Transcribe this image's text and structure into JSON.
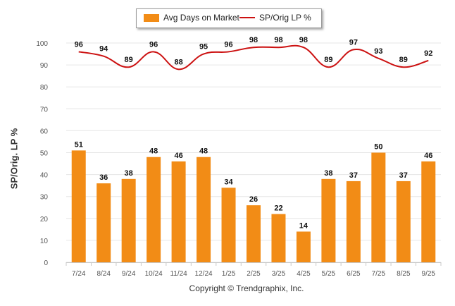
{
  "chart_data": {
    "type": "bar+line",
    "title": "",
    "categories": [
      "7/24",
      "8/24",
      "9/24",
      "10/24",
      "11/24",
      "12/24",
      "1/25",
      "2/25",
      "3/25",
      "4/25",
      "5/25",
      "6/25",
      "7/25",
      "8/25",
      "9/25"
    ],
    "series": [
      {
        "name": "Avg Days on Market",
        "type": "bar",
        "color": "#f28c16",
        "values": [
          51,
          36,
          38,
          48,
          46,
          48,
          34,
          26,
          22,
          14,
          38,
          37,
          50,
          37,
          46
        ]
      },
      {
        "name": "SP/Orig LP %",
        "type": "line",
        "color": "#cc1111",
        "values": [
          96,
          94,
          89,
          96,
          88,
          95,
          96,
          98,
          98,
          98,
          89,
          97,
          93,
          89,
          92
        ]
      }
    ],
    "ylabel": "SP/Orig. LP %",
    "xlabel": "",
    "ylim": [
      0,
      100
    ],
    "yticks": [
      0,
      10,
      20,
      30,
      40,
      50,
      60,
      70,
      80,
      90,
      100
    ],
    "grid": true,
    "legend_position": "top-center"
  },
  "legend": {
    "bar_label": "Avg Days on Market",
    "line_label": "SP/Orig LP %"
  },
  "footer": {
    "copyright": "Copyright © Trendgraphix, Inc."
  }
}
